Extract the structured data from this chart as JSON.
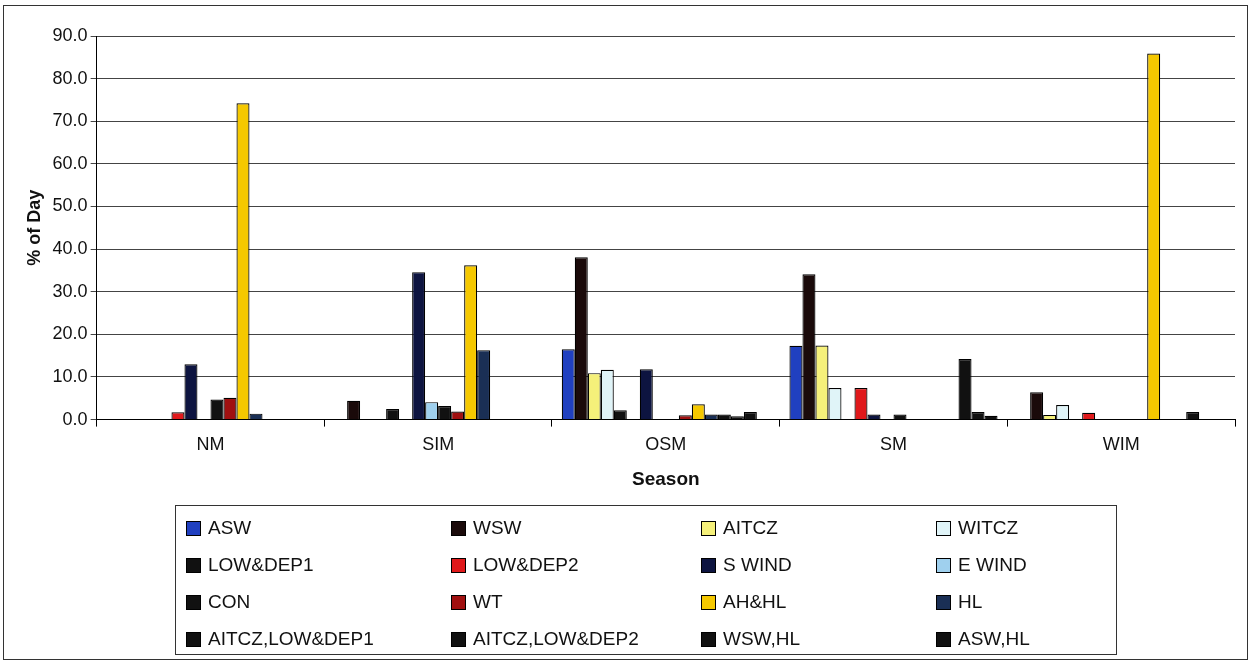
{
  "chart_data": {
    "type": "bar",
    "xlabel": "Season",
    "ylabel": "% of Day",
    "categories": [
      "NM",
      "SIM",
      "OSM",
      "SM",
      "WIM"
    ],
    "ylim": [
      0,
      90
    ],
    "yticks": [
      {
        "value": 0,
        "label": "0.0"
      },
      {
        "value": 10,
        "label": "10.0"
      },
      {
        "value": 20,
        "label": "20.0"
      },
      {
        "value": 30,
        "label": "30.0"
      },
      {
        "value": 40,
        "label": "40.0"
      },
      {
        "value": 50,
        "label": "50.0"
      },
      {
        "value": 60,
        "label": "60.0"
      },
      {
        "value": 70,
        "label": "70.0"
      },
      {
        "value": 80,
        "label": "80.0"
      },
      {
        "value": 90,
        "label": "90.0"
      }
    ],
    "grid": "y",
    "legend": "bottom",
    "series": [
      {
        "name": "ASW",
        "color": "#2040c0",
        "values": [
          null,
          null,
          16.5,
          17.3,
          null
        ]
      },
      {
        "name": "WSW",
        "color": "#1a0a0a",
        "values": [
          null,
          4.4,
          38.1,
          34.1,
          6.4
        ]
      },
      {
        "name": "AITCZ",
        "color": "#f5f07a",
        "values": [
          null,
          null,
          10.9,
          17.4,
          1.1
        ]
      },
      {
        "name": "WITCZ",
        "color": "#e0f4f8",
        "values": [
          null,
          null,
          11.7,
          7.4,
          3.4
        ]
      },
      {
        "name": "LOW&DEP1",
        "color": "#111111",
        "values": [
          null,
          2.5,
          2.2,
          null,
          null
        ]
      },
      {
        "name": "LOW&DEP2",
        "color": "#e0191b",
        "values": [
          1.7,
          null,
          null,
          7.4,
          1.6
        ]
      },
      {
        "name": "S WIND",
        "color": "#0d1440",
        "values": [
          13.0,
          34.6,
          11.8,
          1.2,
          null
        ]
      },
      {
        "name": "E WIND",
        "color": "#9fd0ee",
        "values": [
          null,
          4.1,
          null,
          null,
          null
        ]
      },
      {
        "name": "CON",
        "color": "#111111",
        "values": [
          4.7,
          3.2,
          null,
          1.2,
          null
        ]
      },
      {
        "name": "WT",
        "color": "#a01010",
        "values": [
          5.1,
          1.9,
          1.0,
          null,
          null
        ]
      },
      {
        "name": "AH&HL",
        "color": "#f5c800",
        "values": [
          74.2,
          36.2,
          3.6,
          null,
          85.9
        ]
      },
      {
        "name": "HL",
        "color": "#1a2f55",
        "values": [
          1.4,
          16.3,
          1.2,
          null,
          null
        ]
      },
      {
        "name": "AITCZ,LOW&DEP1",
        "color": "#111111",
        "values": [
          null,
          null,
          1.2,
          null,
          null
        ]
      },
      {
        "name": "AITCZ,LOW&DEP2",
        "color": "#111111",
        "values": [
          null,
          null,
          0.8,
          14.2,
          1.8
        ]
      },
      {
        "name": "WSW,HL",
        "color": "#111111",
        "values": [
          null,
          null,
          1.8,
          1.8,
          null
        ]
      },
      {
        "name": "ASW,HL",
        "color": "#111111",
        "values": [
          null,
          null,
          null,
          0.9,
          null
        ]
      }
    ]
  }
}
